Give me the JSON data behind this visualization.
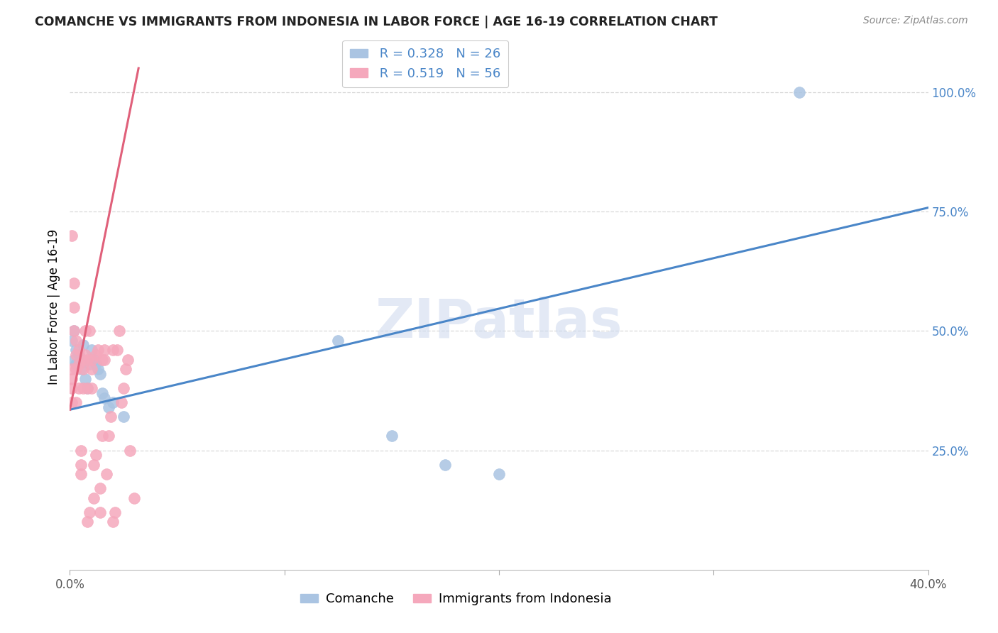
{
  "title": "COMANCHE VS IMMIGRANTS FROM INDONESIA IN LABOR FORCE | AGE 16-19 CORRELATION CHART",
  "source": "Source: ZipAtlas.com",
  "ylabel": "In Labor Force | Age 16-19",
  "watermark": "ZIPatlas",
  "xlim": [
    0.0,
    0.4
  ],
  "ylim": [
    0.0,
    1.1
  ],
  "xticks": [
    0.0,
    0.1,
    0.2,
    0.3,
    0.4
  ],
  "ytick_positions": [
    0.25,
    0.5,
    0.75,
    1.0
  ],
  "ytick_labels": [
    "25.0%",
    "50.0%",
    "75.0%",
    "100.0%"
  ],
  "blue_color": "#aac4e2",
  "pink_color": "#f5a8bc",
  "blue_line_color": "#4a86c8",
  "pink_line_color": "#e0607a",
  "comanche_label": "Comanche",
  "indonesia_label": "Immigrants from Indonesia",
  "background_color": "#ffffff",
  "grid_color": "#d8d8d8",
  "comanche_x": [
    0.001,
    0.002,
    0.002,
    0.003,
    0.003,
    0.004,
    0.005,
    0.006,
    0.007,
    0.008,
    0.009,
    0.01,
    0.011,
    0.012,
    0.013,
    0.014,
    0.015,
    0.016,
    0.018,
    0.02,
    0.025,
    0.125,
    0.15,
    0.175,
    0.2,
    0.34
  ],
  "comanche_y": [
    0.48,
    0.5,
    0.44,
    0.46,
    0.43,
    0.45,
    0.42,
    0.47,
    0.4,
    0.38,
    0.43,
    0.46,
    0.44,
    0.43,
    0.42,
    0.41,
    0.37,
    0.36,
    0.34,
    0.35,
    0.32,
    0.48,
    0.28,
    0.22,
    0.2,
    1.0
  ],
  "indonesia_x": [
    0.001,
    0.001,
    0.001,
    0.001,
    0.001,
    0.002,
    0.002,
    0.002,
    0.003,
    0.003,
    0.003,
    0.003,
    0.004,
    0.004,
    0.004,
    0.005,
    0.005,
    0.005,
    0.006,
    0.006,
    0.006,
    0.007,
    0.007,
    0.008,
    0.008,
    0.008,
    0.009,
    0.009,
    0.01,
    0.01,
    0.01,
    0.011,
    0.011,
    0.012,
    0.012,
    0.013,
    0.014,
    0.014,
    0.015,
    0.015,
    0.016,
    0.016,
    0.017,
    0.018,
    0.019,
    0.02,
    0.02,
    0.021,
    0.022,
    0.023,
    0.024,
    0.025,
    0.026,
    0.027,
    0.028,
    0.03
  ],
  "indonesia_y": [
    0.38,
    0.4,
    0.42,
    0.35,
    0.7,
    0.5,
    0.55,
    0.6,
    0.42,
    0.45,
    0.48,
    0.35,
    0.38,
    0.43,
    0.46,
    0.22,
    0.25,
    0.2,
    0.38,
    0.42,
    0.44,
    0.45,
    0.5,
    0.38,
    0.44,
    0.1,
    0.5,
    0.12,
    0.38,
    0.42,
    0.44,
    0.22,
    0.15,
    0.24,
    0.45,
    0.46,
    0.12,
    0.17,
    0.28,
    0.44,
    0.44,
    0.46,
    0.2,
    0.28,
    0.32,
    0.1,
    0.46,
    0.12,
    0.46,
    0.5,
    0.35,
    0.38,
    0.42,
    0.44,
    0.25,
    0.15
  ],
  "blue_line_x": [
    0.0,
    0.4
  ],
  "blue_line_y": [
    0.335,
    0.758
  ],
  "pink_line_x": [
    0.0,
    0.032
  ],
  "pink_line_y": [
    0.335,
    1.05
  ]
}
